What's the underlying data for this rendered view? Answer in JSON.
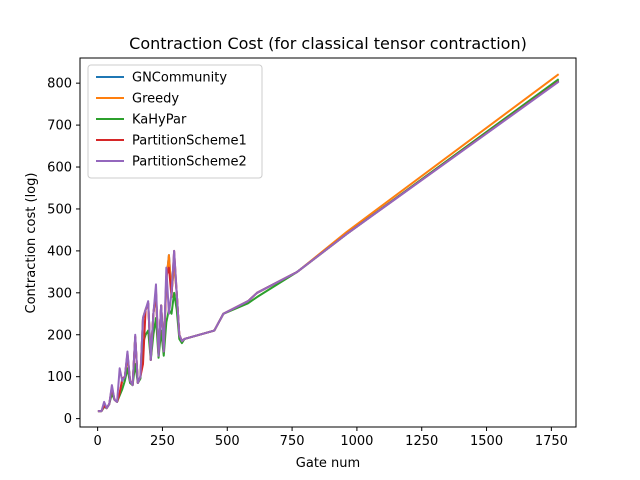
{
  "chart_data": {
    "type": "line",
    "title": "Contraction Cost (for classical tensor contraction)",
    "xlabel": "Gate num",
    "ylabel": "Contraction cost (log)",
    "xlim": [
      -68,
      1845
    ],
    "ylim": [
      -20,
      860
    ],
    "xticks": [
      0,
      250,
      500,
      750,
      1000,
      1250,
      1500,
      1750
    ],
    "yticks": [
      0,
      100,
      200,
      300,
      400,
      500,
      600,
      700,
      800
    ],
    "grid": false,
    "legend_position": "top-left",
    "series": [
      {
        "name": "GNCommunity",
        "color": "#1f77b4",
        "x": [
          5,
          15,
          25,
          35,
          45,
          55,
          65,
          75,
          85,
          95,
          105,
          115,
          125,
          135,
          145,
          155,
          165,
          175,
          185,
          195,
          205,
          215,
          225,
          235,
          245,
          255,
          265,
          275,
          285,
          295,
          305,
          315,
          325,
          335,
          450,
          485,
          580,
          615,
          770,
          960,
          1775
        ],
        "y": [
          18,
          18,
          30,
          25,
          35,
          70,
          45,
          40,
          60,
          90,
          100,
          150,
          90,
          80,
          195,
          85,
          100,
          240,
          260,
          275,
          140,
          250,
          300,
          150,
          270,
          160,
          330,
          390,
          300,
          370,
          300,
          200,
          185,
          190,
          210,
          250,
          280,
          300,
          350,
          440,
          805
        ]
      },
      {
        "name": "Greedy",
        "color": "#ff7f0e",
        "x": [
          5,
          15,
          25,
          35,
          45,
          55,
          65,
          75,
          85,
          95,
          105,
          115,
          125,
          135,
          145,
          155,
          165,
          175,
          185,
          195,
          205,
          215,
          225,
          235,
          245,
          255,
          265,
          275,
          285,
          295,
          305,
          315,
          325,
          335,
          450,
          485,
          580,
          615,
          770,
          960,
          1775
        ],
        "y": [
          18,
          18,
          30,
          25,
          35,
          70,
          45,
          40,
          60,
          90,
          100,
          150,
          90,
          80,
          195,
          85,
          100,
          240,
          260,
          275,
          140,
          250,
          300,
          150,
          270,
          160,
          330,
          390,
          300,
          370,
          300,
          200,
          185,
          190,
          210,
          250,
          280,
          300,
          350,
          445,
          820
        ]
      },
      {
        "name": "KaHyPar",
        "color": "#2ca02c",
        "x": [
          5,
          15,
          25,
          35,
          45,
          55,
          65,
          75,
          85,
          95,
          105,
          115,
          125,
          135,
          145,
          155,
          165,
          175,
          185,
          195,
          205,
          215,
          225,
          235,
          245,
          255,
          265,
          275,
          285,
          295,
          305,
          315,
          325,
          335,
          450,
          485,
          580,
          615,
          770,
          960,
          1775
        ],
        "y": [
          18,
          18,
          28,
          25,
          35,
          60,
          45,
          40,
          55,
          70,
          90,
          120,
          85,
          80,
          130,
          85,
          95,
          180,
          200,
          210,
          140,
          200,
          240,
          145,
          210,
          150,
          230,
          260,
          250,
          300,
          260,
          190,
          180,
          190,
          210,
          250,
          275,
          290,
          350,
          440,
          808
        ]
      },
      {
        "name": "PartitionScheme1",
        "color": "#d62728",
        "x": [
          5,
          15,
          25,
          35,
          45,
          55,
          65,
          75,
          85,
          95,
          105,
          115,
          125,
          135,
          145,
          155,
          165,
          175,
          185,
          195,
          205,
          215,
          225,
          235,
          245,
          255,
          265,
          275,
          285,
          295,
          305,
          315,
          325,
          335,
          450,
          485,
          580,
          615,
          770,
          960,
          1775
        ],
        "y": [
          18,
          18,
          30,
          25,
          35,
          75,
          45,
          40,
          60,
          95,
          100,
          155,
          90,
          80,
          195,
          85,
          100,
          130,
          260,
          275,
          140,
          250,
          305,
          150,
          270,
          160,
          340,
          360,
          290,
          400,
          300,
          200,
          185,
          190,
          210,
          250,
          280,
          300,
          350,
          440,
          803
        ]
      },
      {
        "name": "PartitionScheme2",
        "color": "#9467bd",
        "x": [
          5,
          15,
          25,
          35,
          45,
          55,
          65,
          75,
          85,
          95,
          105,
          115,
          125,
          135,
          145,
          155,
          165,
          175,
          185,
          195,
          205,
          215,
          225,
          235,
          245,
          255,
          265,
          275,
          285,
          295,
          305,
          315,
          325,
          335,
          450,
          485,
          580,
          615,
          770,
          960,
          1775
        ],
        "y": [
          18,
          18,
          40,
          25,
          35,
          80,
          45,
          40,
          120,
          90,
          100,
          160,
          90,
          80,
          200,
          85,
          100,
          240,
          260,
          280,
          140,
          250,
          320,
          150,
          270,
          160,
          360,
          250,
          300,
          400,
          300,
          200,
          185,
          190,
          210,
          250,
          280,
          300,
          350,
          440,
          802
        ]
      }
    ]
  }
}
